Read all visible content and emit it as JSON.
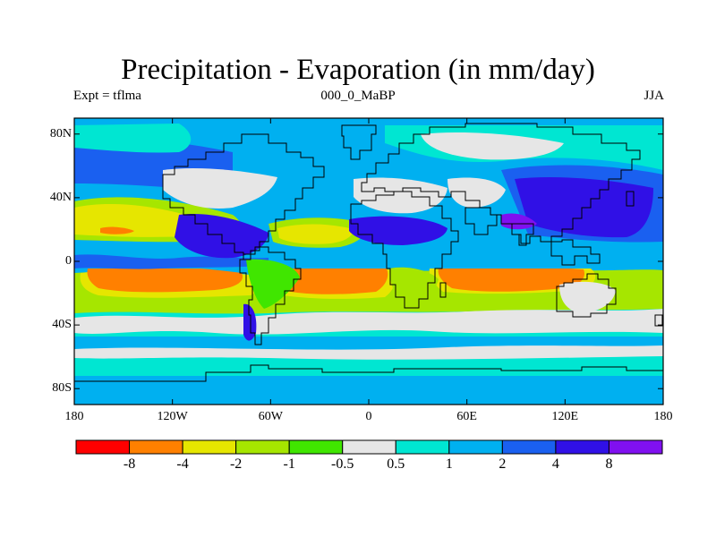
{
  "map": {
    "title": "Precipitation - Evaporation (in mm/day)",
    "subtitle_left": "Expt = tflma",
    "subtitle_center": "000_0_MaBP",
    "subtitle_right": "JJA",
    "projection": "cylindrical-equidistant",
    "lat_ticks": [
      "80N",
      "40N",
      "0",
      "40S",
      "80S"
    ],
    "lat_values": [
      80,
      40,
      0,
      -40,
      -80
    ],
    "lon_ticks": [
      "180",
      "120W",
      "60W",
      "0",
      "60E",
      "120E",
      "180"
    ],
    "lon_values": [
      -180,
      -120,
      -60,
      0,
      60,
      120,
      180
    ],
    "extent": {
      "lon": [
        -180,
        180
      ],
      "lat": [
        -90,
        90
      ]
    },
    "coastline_color": "#000000"
  },
  "colorbar": {
    "labels": [
      "-8",
      "-4",
      "-2",
      "-1",
      "-0.5",
      "0.5",
      "1",
      "2",
      "4",
      "8"
    ],
    "colors": [
      "#ff0000",
      "#ff8000",
      "#e6e600",
      "#a6e600",
      "#40e600",
      "#e6e6e6",
      "#00e6d2",
      "#00b0f0",
      "#1a60f0",
      "#3010e6",
      "#8010f0"
    ]
  },
  "legend": {
    "colors": {
      "ocean_wet_mid": "#00b0f0",
      "ocean_moist": "#00e6d2",
      "neutral": "#e6e6e6",
      "dry_light": "#40e600",
      "dry": "#a6e600",
      "dry_more": "#e6e600",
      "dry_strong": "#ff8000",
      "wet_strong": "#1a60f0",
      "wet_very": "#3010e6"
    }
  }
}
